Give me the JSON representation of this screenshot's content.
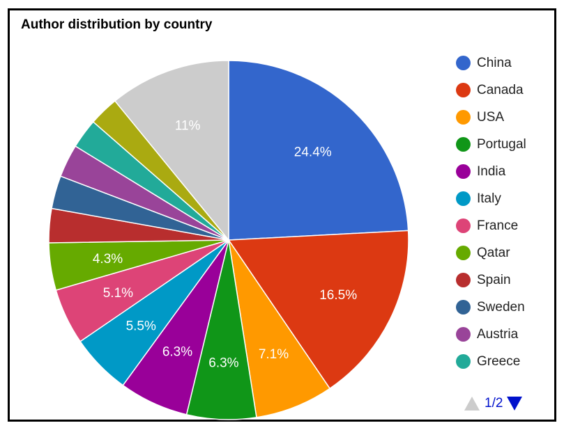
{
  "chart_data": {
    "type": "pie",
    "title": "Author distribution by country",
    "slices": [
      {
        "label": "China",
        "value": 24.4,
        "color": "#3366cc",
        "display": "24.4%"
      },
      {
        "label": "Canada",
        "value": 16.5,
        "color": "#dc3912",
        "display": "16.5%"
      },
      {
        "label": "USA",
        "value": 7.1,
        "color": "#ff9900",
        "display": "7.1%"
      },
      {
        "label": "Portugal",
        "value": 6.3,
        "color": "#109618",
        "display": "6.3%"
      },
      {
        "label": "India",
        "value": 6.3,
        "color": "#990099",
        "display": "6.3%"
      },
      {
        "label": "Italy",
        "value": 5.5,
        "color": "#0099c6",
        "display": "5.5%"
      },
      {
        "label": "France",
        "value": 5.1,
        "color": "#dd4477",
        "display": "5.1%"
      },
      {
        "label": "Qatar",
        "value": 4.3,
        "color": "#66aa00",
        "display": "4.3%"
      },
      {
        "label": "Spain",
        "value": 3.1,
        "color": "#b82e2e",
        "display": ""
      },
      {
        "label": "Sweden",
        "value": 3.0,
        "color": "#316395",
        "display": ""
      },
      {
        "label": "Austria",
        "value": 3.0,
        "color": "#994499",
        "display": ""
      },
      {
        "label": "Greece",
        "value": 2.7,
        "color": "#22aa99",
        "display": ""
      },
      {
        "label": "",
        "value": 2.7,
        "color": "#aaaa11",
        "display": ""
      },
      {
        "label": "",
        "value": 11.0,
        "color": "#cccccc",
        "display": "11%"
      }
    ],
    "legend_position": "right",
    "legend_page": "1/2"
  }
}
